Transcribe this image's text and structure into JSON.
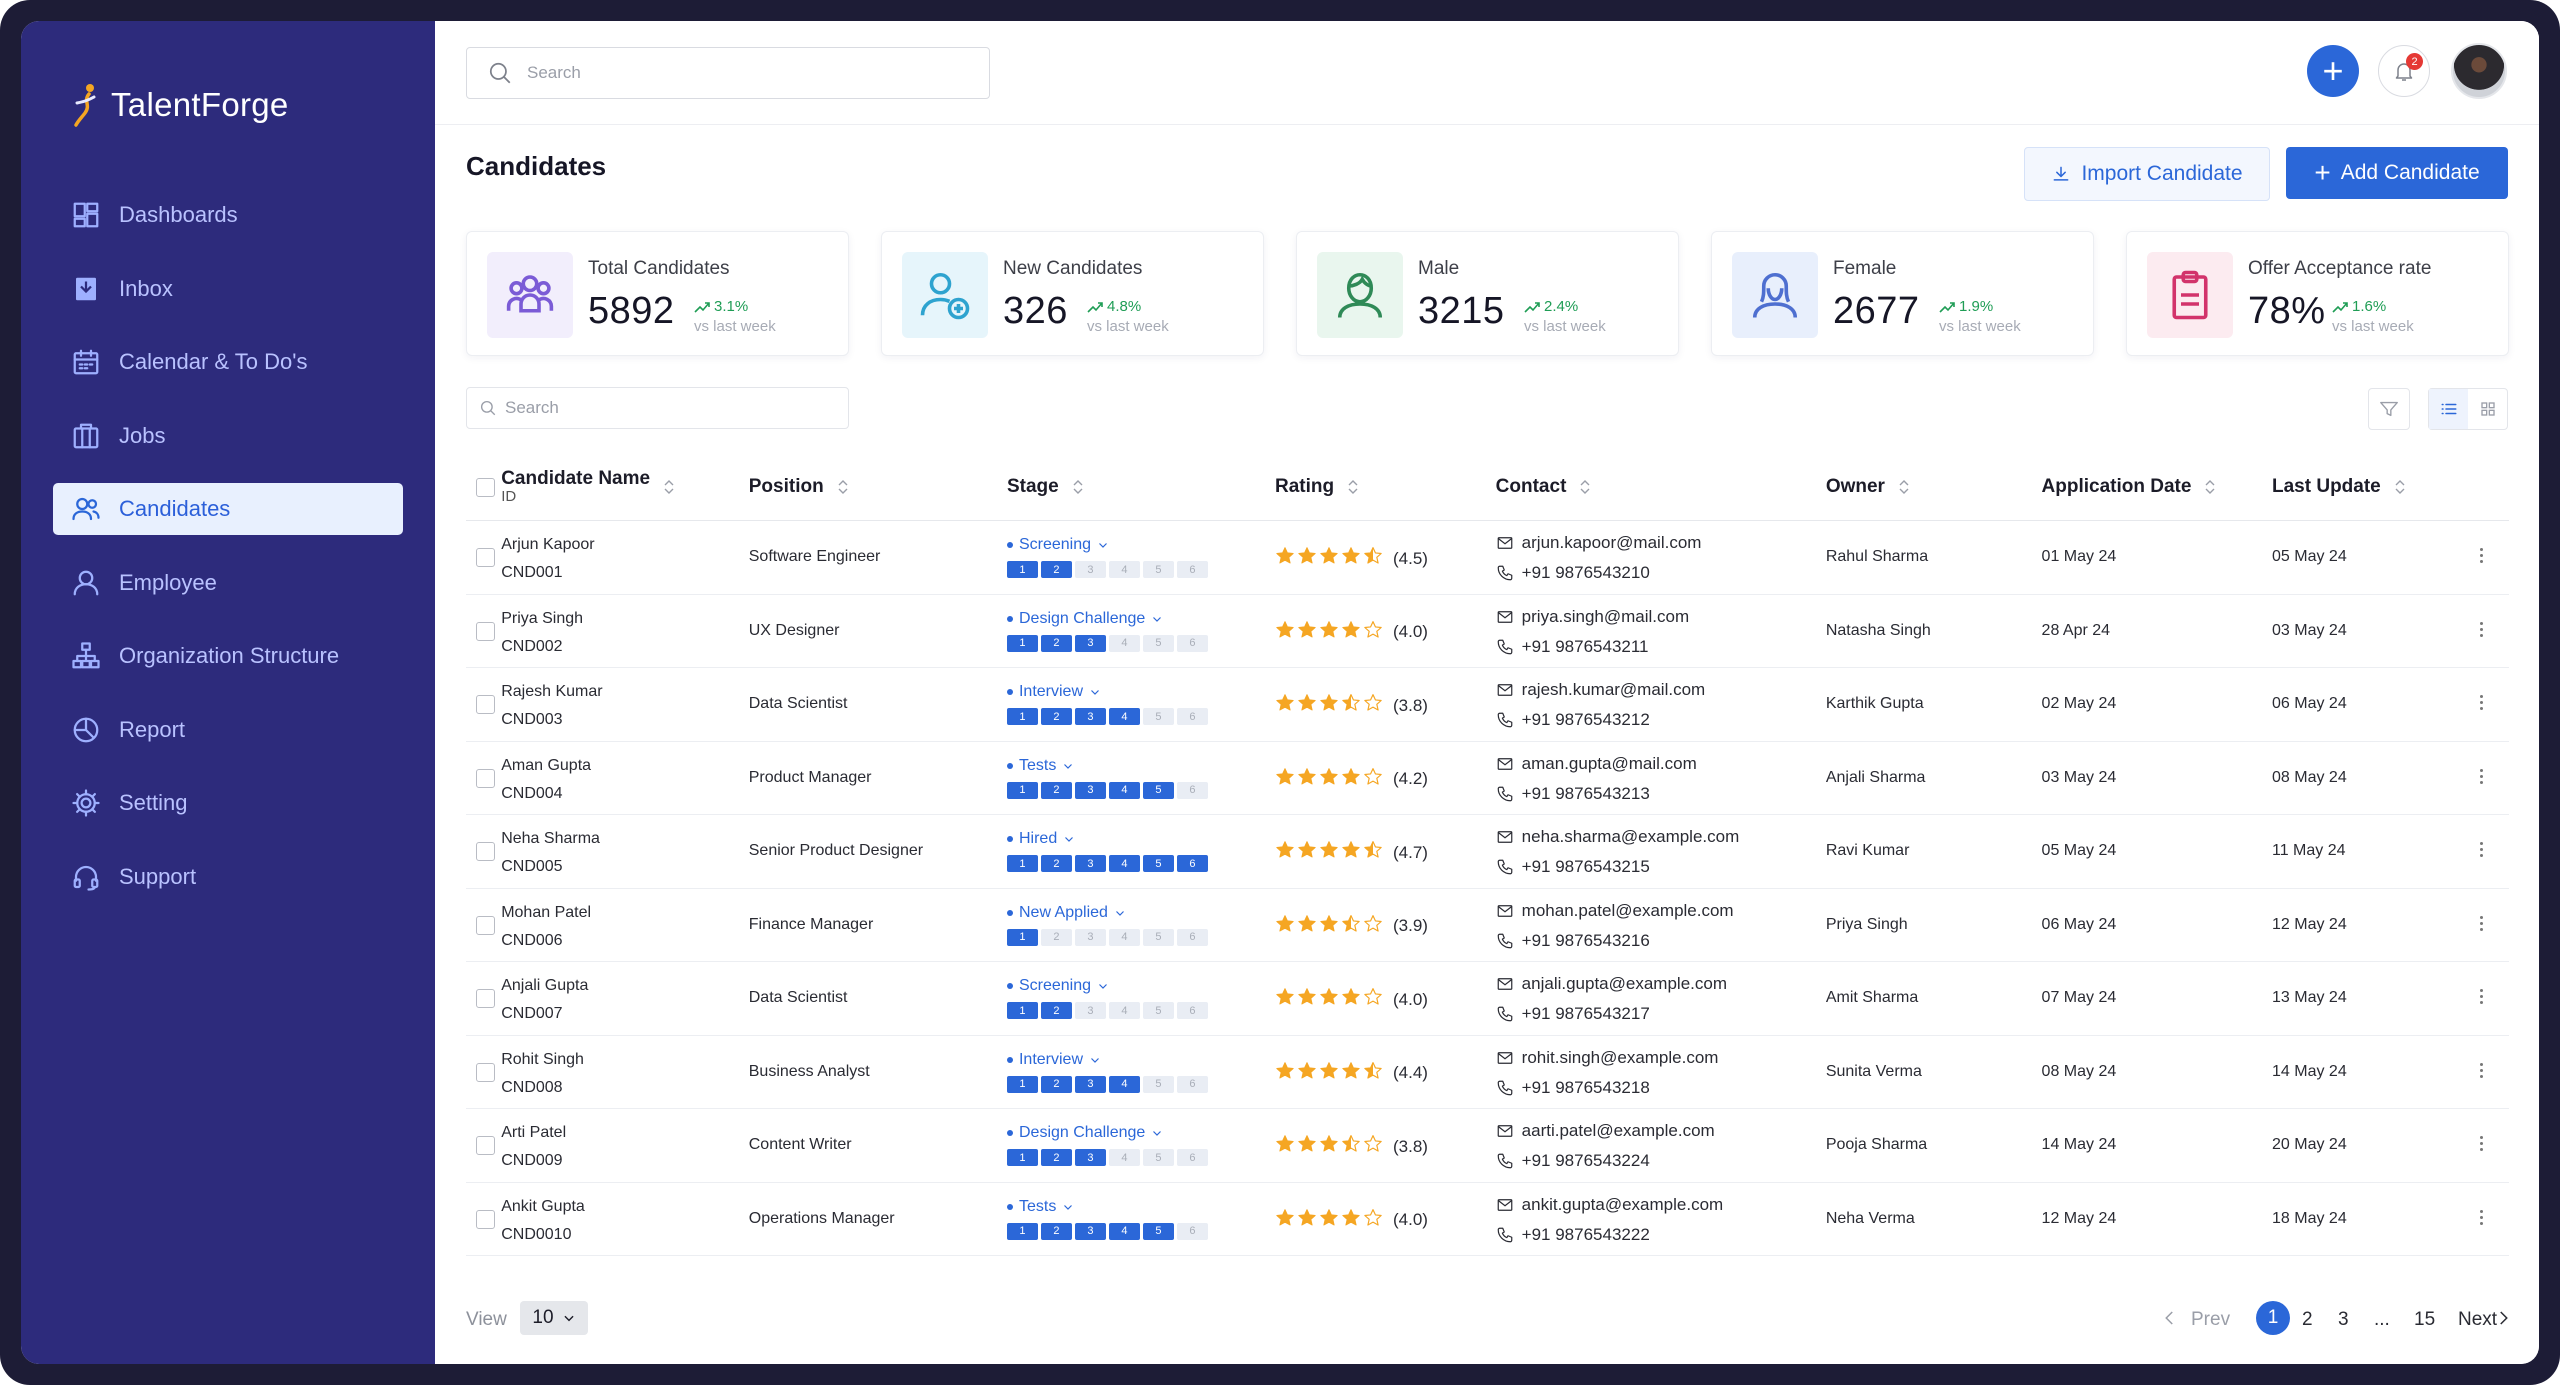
{
  "app": {
    "name": "TalentForge"
  },
  "sidebar": {
    "items": [
      {
        "label": "Dashboards",
        "icon": "dashboard-icon"
      },
      {
        "label": "Inbox",
        "icon": "inbox-icon"
      },
      {
        "label": "Calendar & To Do's",
        "icon": "calendar-icon"
      },
      {
        "label": "Jobs",
        "icon": "briefcase-icon"
      },
      {
        "label": "Candidates",
        "icon": "users-icon",
        "active": true
      },
      {
        "label": "Employee",
        "icon": "user-icon"
      },
      {
        "label": "Organization Structure",
        "icon": "org-chart-icon"
      },
      {
        "label": "Report",
        "icon": "pie-chart-icon"
      },
      {
        "label": "Setting",
        "icon": "gear-icon"
      },
      {
        "label": "Support",
        "icon": "headset-icon"
      }
    ]
  },
  "topbar": {
    "search_placeholder": "Search",
    "notification_count": "2"
  },
  "page": {
    "title": "Candidates",
    "import_label": "Import Candidate",
    "add_label": "Add Candidate"
  },
  "stats": [
    {
      "label": "Total Candidates",
      "value": "5892",
      "delta": "3.1%",
      "sub": "vs last week"
    },
    {
      "label": "New Candidates",
      "value": "326",
      "delta": "4.8%",
      "sub": "vs last week"
    },
    {
      "label": "Male",
      "value": "3215",
      "delta": "2.4%",
      "sub": "vs last week"
    },
    {
      "label": "Female",
      "value": "2677",
      "delta": "1.9%",
      "sub": "vs last week"
    },
    {
      "label": "Offer Acceptance rate",
      "value": "78%",
      "delta": "1.6%",
      "sub": "vs last week"
    }
  ],
  "table": {
    "search_placeholder": "Search",
    "columns": {
      "name": "Candidate Name",
      "id": "ID",
      "position": "Position",
      "stage": "Stage",
      "rating": "Rating",
      "contact": "Contact",
      "owner": "Owner",
      "app_date": "Application Date",
      "last_update": "Last Update"
    },
    "step_labels": [
      "1",
      "2",
      "3",
      "4",
      "5",
      "6"
    ],
    "rows": [
      {
        "name": "Arjun Kapoor",
        "id": "CND001",
        "position": "Software Engineer",
        "stage": "Screening",
        "steps_done": 2,
        "rating": 4.5,
        "rating_text": "(4.5)",
        "email": "arjun.kapoor@mail.com",
        "phone": "+91 9876543210",
        "owner": "Rahul Sharma",
        "app_date": "01 May 24",
        "last_update": "05 May 24"
      },
      {
        "name": "Priya Singh",
        "id": "CND002",
        "position": "UX Designer",
        "stage": "Design Challenge",
        "steps_done": 3,
        "rating": 4.0,
        "rating_text": "(4.0)",
        "email": "priya.singh@mail.com",
        "phone": "+91 9876543211",
        "owner": "Natasha Singh",
        "app_date": "28 Apr 24",
        "last_update": "03 May 24"
      },
      {
        "name": "Rajesh Kumar",
        "id": "CND003",
        "position": "Data Scientist",
        "stage": "Interview",
        "steps_done": 4,
        "rating": 3.8,
        "rating_text": "(3.8)",
        "email": "rajesh.kumar@mail.com",
        "phone": "+91 9876543212",
        "owner": "Karthik Gupta",
        "app_date": "02 May 24",
        "last_update": "06 May 24"
      },
      {
        "name": "Aman Gupta",
        "id": "CND004",
        "position": "Product Manager",
        "stage": "Tests",
        "steps_done": 5,
        "rating": 4.2,
        "rating_text": "(4.2)",
        "email": "aman.gupta@mail.com",
        "phone": "+91 9876543213",
        "owner": "Anjali Sharma",
        "app_date": "03 May 24",
        "last_update": "08 May 24"
      },
      {
        "name": "Neha Sharma",
        "id": "CND005",
        "position": "Senior Product Designer",
        "stage": "Hired",
        "steps_done": 6,
        "rating": 4.7,
        "rating_text": "(4.7)",
        "email": "neha.sharma@example.com",
        "phone": "+91 9876543215",
        "owner": "Ravi Kumar",
        "app_date": "05 May 24",
        "last_update": "11 May 24"
      },
      {
        "name": "Mohan Patel",
        "id": "CND006",
        "position": "Finance Manager",
        "stage": "New Applied",
        "steps_done": 1,
        "rating": 3.9,
        "rating_text": "(3.9)",
        "email": "mohan.patel@example.com",
        "phone": "+91 9876543216",
        "owner": "Priya Singh",
        "app_date": "06 May 24",
        "last_update": "12 May 24"
      },
      {
        "name": "Anjali Gupta",
        "id": "CND007",
        "position": "Data Scientist",
        "stage": "Screening",
        "steps_done": 2,
        "rating": 4.0,
        "rating_text": "(4.0)",
        "email": "anjali.gupta@example.com",
        "phone": "+91 9876543217",
        "owner": "Amit Sharma",
        "app_date": "07 May 24",
        "last_update": "13 May 24"
      },
      {
        "name": "Rohit Singh",
        "id": "CND008",
        "position": "Business Analyst",
        "stage": "Interview",
        "steps_done": 4,
        "rating": 4.4,
        "rating_text": "(4.4)",
        "email": "rohit.singh@example.com",
        "phone": "+91 9876543218",
        "owner": "Sunita Verma",
        "app_date": "08 May 24",
        "last_update": "14 May 24"
      },
      {
        "name": "Arti Patel",
        "id": "CND009",
        "position": "Content Writer",
        "stage": "Design Challenge",
        "steps_done": 3,
        "rating": 3.8,
        "rating_text": "(3.8)",
        "email": "aarti.patel@example.com",
        "phone": "+91 9876543224",
        "owner": "Pooja Sharma",
        "app_date": "14 May 24",
        "last_update": "20 May 24"
      },
      {
        "name": "Ankit Gupta",
        "id": "CND0010",
        "position": "Operations Manager",
        "stage": "Tests",
        "steps_done": 5,
        "rating": 4.0,
        "rating_text": "(4.0)",
        "email": "ankit.gupta@example.com",
        "phone": "+91 9876543222",
        "owner": "Neha Verma",
        "app_date": "12 May 24",
        "last_update": "18 May 24"
      }
    ]
  },
  "pagination": {
    "view_label": "View",
    "page_size": "10",
    "prev": "Prev",
    "next": "Next",
    "pages": [
      "1",
      "2",
      "3",
      "...",
      "15"
    ],
    "current": "1"
  },
  "colors": {
    "sidebar": "#2d2b7c",
    "accent": "#2b67d8",
    "positive": "#1f9d55",
    "star": "#f5a623"
  }
}
